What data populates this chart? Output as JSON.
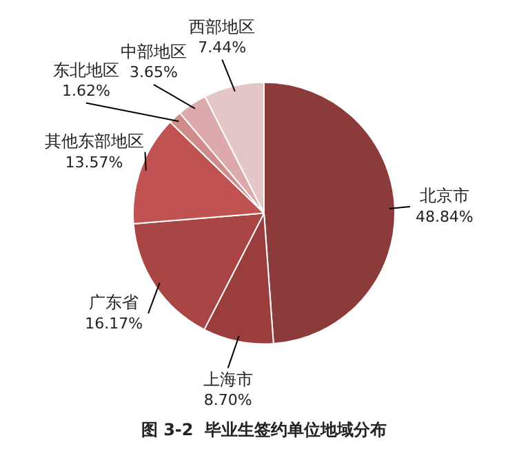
{
  "chart_data": {
    "type": "pie",
    "title": "图 3-2  毕业生签约单位地域分布",
    "categories": [
      "北京市",
      "上海市",
      "广东省",
      "其他东部地区",
      "东北地区",
      "中部地区",
      "西部地区"
    ],
    "values": [
      48.84,
      8.7,
      16.17,
      13.57,
      1.62,
      3.65,
      7.44
    ],
    "value_labels": [
      "48.84%",
      "8.70%",
      "16.17%",
      "13.57%",
      "1.62%",
      "3.65%",
      "7.44%"
    ],
    "colors": [
      "#8c3a3a",
      "#9c3d3d",
      "#a94545",
      "#c05252",
      "#d08b8b",
      "#dcaaaa",
      "#e4c6c6"
    ],
    "legend": false
  }
}
